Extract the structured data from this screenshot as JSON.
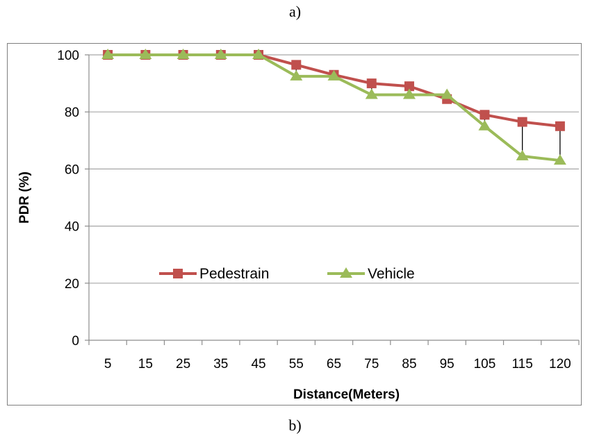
{
  "captions": {
    "top": "a)",
    "bottom": "b)"
  },
  "colors": {
    "pedestrain": "#c0504d",
    "vehicle": "#9bbb59",
    "gridline": "#a6a6a6",
    "axis": "#8c8c8c",
    "error_bar": "#000000"
  },
  "chart_data": {
    "type": "line",
    "title": "",
    "xlabel": "Distance(Meters)",
    "ylabel": "PDR (%)",
    "categories": [
      "5",
      "15",
      "25",
      "35",
      "45",
      "55",
      "65",
      "75",
      "85",
      "95",
      "105",
      "115",
      "120"
    ],
    "ylim": [
      0,
      100
    ],
    "yticks": [
      0,
      20,
      40,
      60,
      80,
      100
    ],
    "grid": "horizontal",
    "legend_position": "inside-lower-left",
    "series": [
      {
        "name": "Pedestrain",
        "marker": "square",
        "color": "#c0504d",
        "values": [
          100,
          100,
          100,
          100,
          100,
          96.5,
          93,
          90,
          89,
          84.5,
          79,
          76.5,
          75
        ]
      },
      {
        "name": "Vehicle",
        "marker": "triangle",
        "color": "#9bbb59",
        "values": [
          100,
          100,
          100,
          100,
          100,
          92.5,
          92.5,
          86,
          86,
          86,
          75,
          64.5,
          63
        ]
      }
    ]
  }
}
